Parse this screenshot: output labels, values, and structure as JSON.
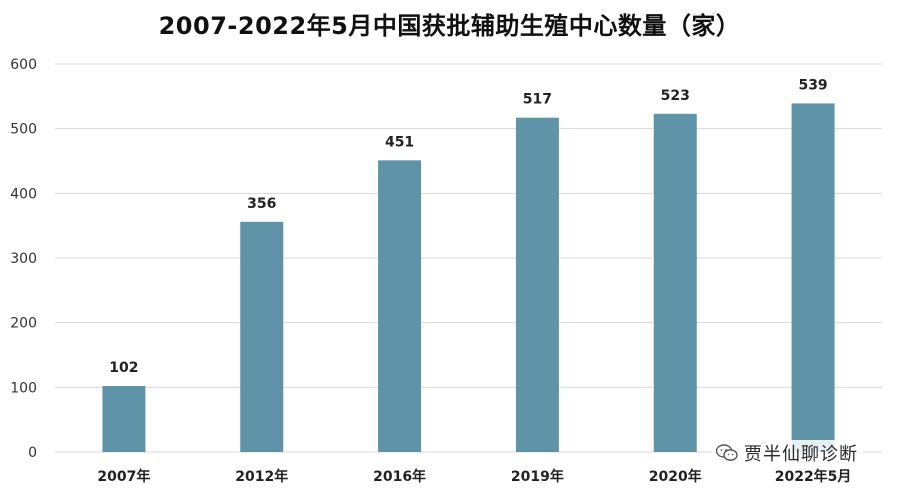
{
  "chart_data": {
    "type": "bar",
    "title": "2007-2022年5月中国获批辅助生殖中心数量（家）",
    "categories": [
      "2007年",
      "2012年",
      "2016年",
      "2019年",
      "2020年",
      "2022年5月"
    ],
    "values": [
      102,
      356,
      451,
      517,
      523,
      539
    ],
    "data_labels": [
      "102",
      "356",
      "451",
      "517",
      "523",
      "539"
    ],
    "yticks": [
      "0",
      "100",
      "200",
      "300",
      "400",
      "500",
      "600"
    ],
    "ylim": [
      0,
      600
    ],
    "grid": true,
    "bar_color": "#5f93a8"
  },
  "watermark": {
    "icon": "wechat-icon",
    "text": "贾半仙聊诊断"
  }
}
